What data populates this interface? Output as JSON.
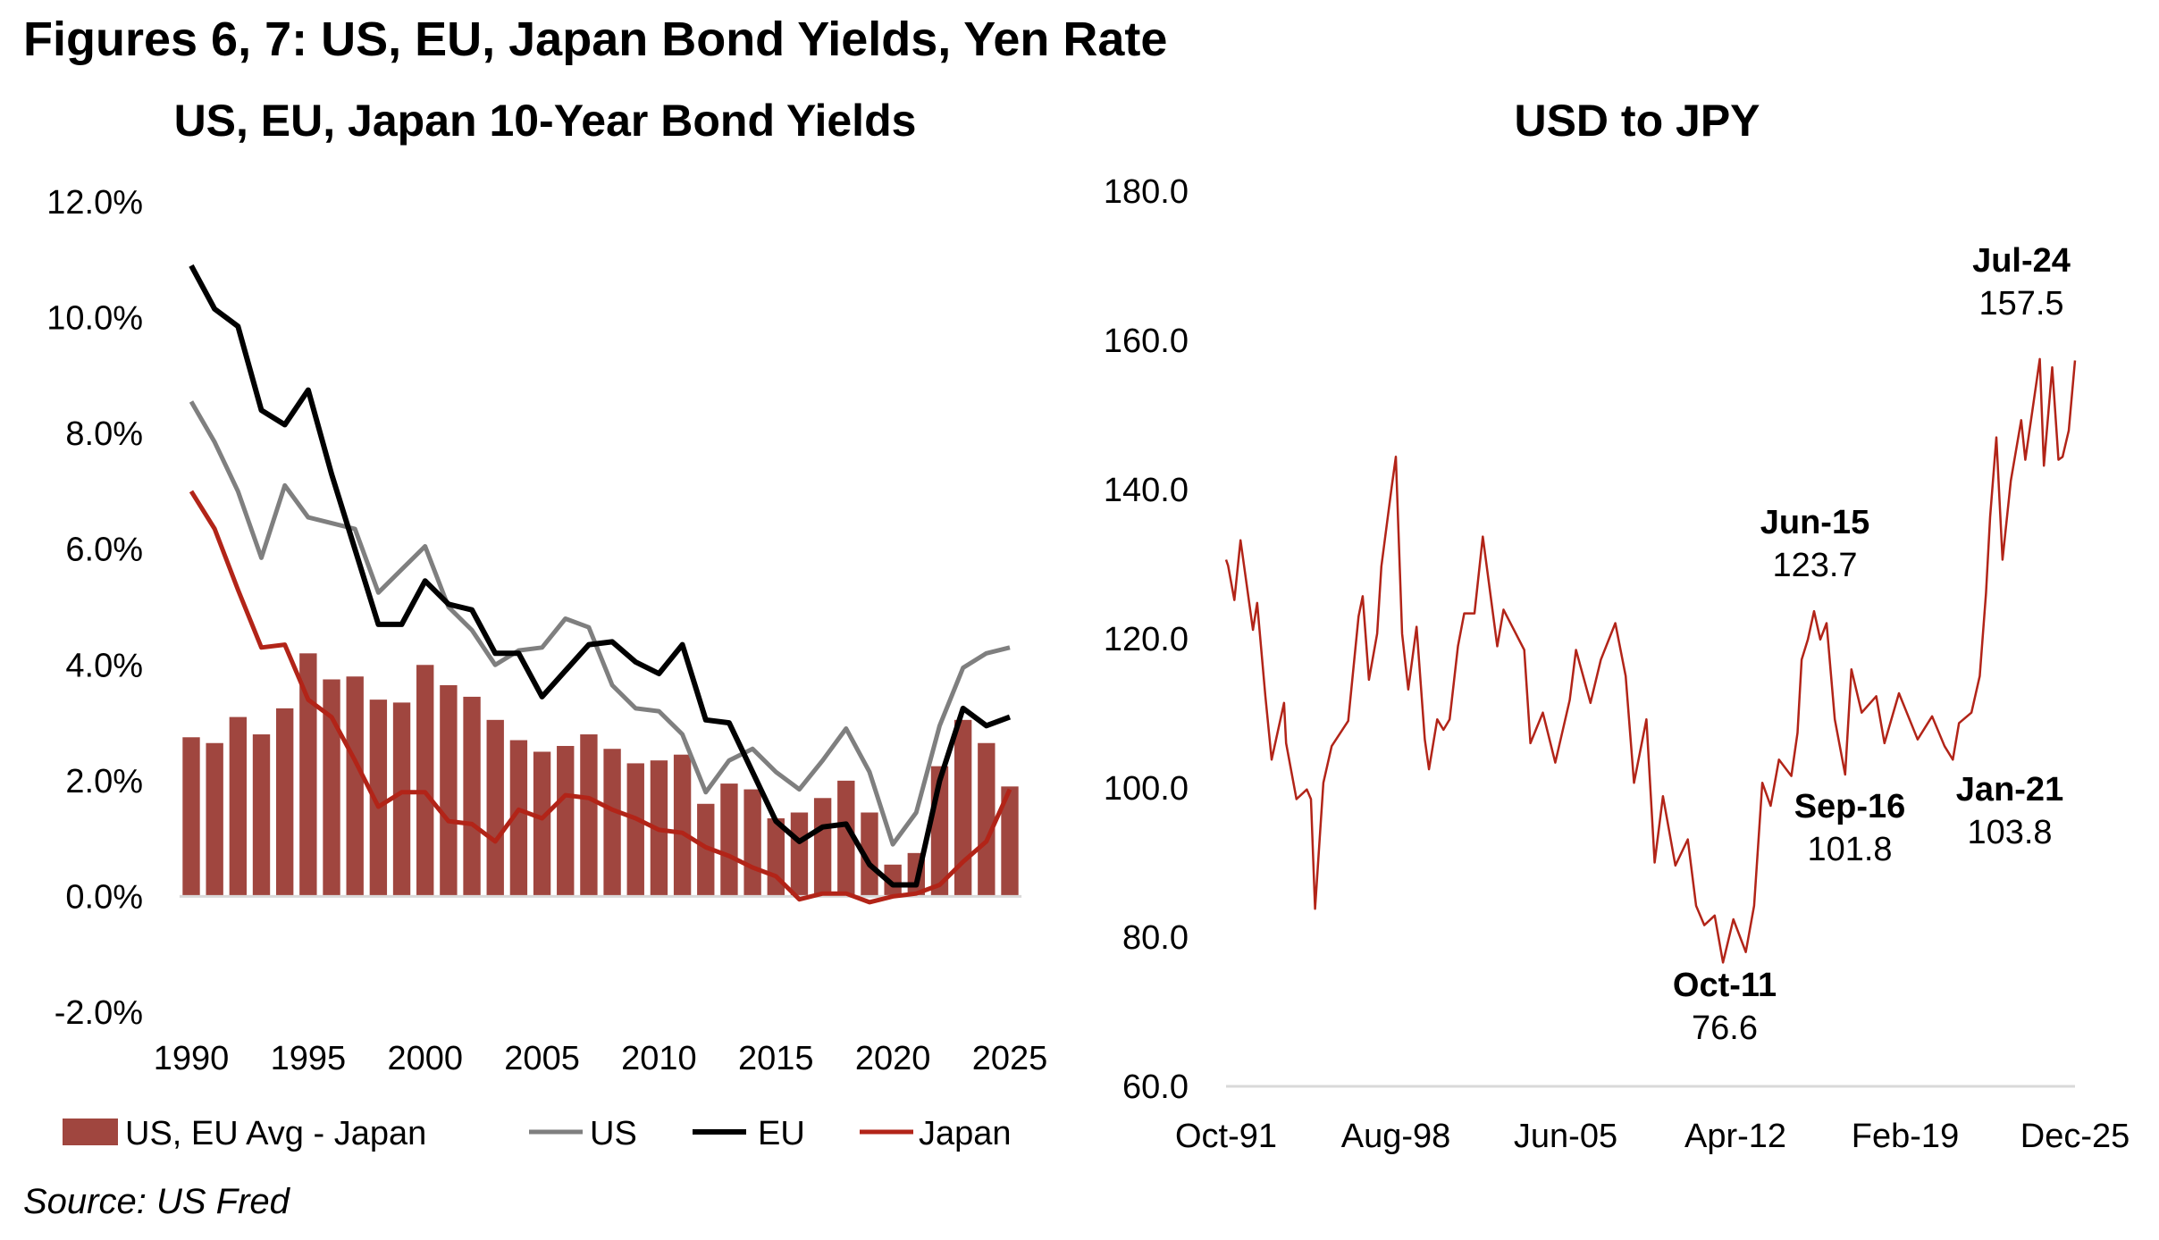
{
  "figure_title": "Figures 6, 7: US, EU, Japan Bond Yields, Yen Rate",
  "source": "Source: US Fred",
  "chart_data": [
    {
      "type": "bar+line",
      "title": "US, EU, Japan 10-Year Bond Yields",
      "xlabel": "",
      "ylabel": "",
      "ylim": [
        -2.0,
        12.0
      ],
      "yticks": [
        "-2.0%",
        "0.0%",
        "2.0%",
        "4.0%",
        "6.0%",
        "8.0%",
        "10.0%",
        "12.0%"
      ],
      "xticks": [
        "1990",
        "1995",
        "2000",
        "2005",
        "2010",
        "2015",
        "2020",
        "2025"
      ],
      "grid": false,
      "legend_position": "bottom",
      "x": [
        1990,
        1991,
        1992,
        1993,
        1994,
        1995,
        1996,
        1997,
        1998,
        1999,
        2000,
        2001,
        2002,
        2003,
        2004,
        2005,
        2006,
        2007,
        2008,
        2009,
        2010,
        2011,
        2012,
        2013,
        2014,
        2015,
        2016,
        2017,
        2018,
        2019,
        2020,
        2021,
        2022,
        2023,
        2024,
        2025
      ],
      "series": [
        {
          "name": "US, EU Avg - Japan",
          "kind": "bar",
          "color": "#A0463F",
          "values": [
            2.75,
            2.65,
            3.1,
            2.8,
            3.25,
            4.2,
            3.75,
            3.8,
            3.4,
            3.35,
            4.0,
            3.65,
            3.45,
            3.05,
            2.7,
            2.5,
            2.6,
            2.8,
            2.55,
            2.3,
            2.35,
            2.45,
            1.6,
            1.95,
            1.85,
            1.35,
            1.45,
            1.7,
            2.0,
            1.45,
            0.55,
            0.75,
            2.25,
            3.05,
            2.65,
            1.9
          ]
        },
        {
          "name": "US",
          "kind": "line",
          "color": "#7F7F7F",
          "values": [
            8.55,
            7.85,
            7.0,
            5.85,
            7.1,
            6.55,
            6.45,
            6.35,
            5.25,
            5.65,
            6.05,
            5.0,
            4.6,
            4.0,
            4.25,
            4.3,
            4.8,
            4.65,
            3.65,
            3.25,
            3.2,
            2.8,
            1.8,
            2.35,
            2.55,
            2.15,
            1.85,
            2.35,
            2.9,
            2.15,
            0.9,
            1.45,
            2.95,
            3.95,
            4.2,
            4.3
          ]
        },
        {
          "name": "EU",
          "kind": "line",
          "color": "#000000",
          "values": [
            10.9,
            10.15,
            9.85,
            8.4,
            8.15,
            8.75,
            7.3,
            6.0,
            4.7,
            4.7,
            5.45,
            5.05,
            4.95,
            4.2,
            4.2,
            3.45,
            3.9,
            4.35,
            4.4,
            4.05,
            3.85,
            4.35,
            3.05,
            3.0,
            2.15,
            1.3,
            0.95,
            1.2,
            1.25,
            0.55,
            0.2,
            0.2,
            2.0,
            3.25,
            2.95,
            3.1
          ]
        },
        {
          "name": "Japan",
          "kind": "line",
          "color": "#B22418",
          "values": [
            7.0,
            6.35,
            5.3,
            4.3,
            4.35,
            3.4,
            3.1,
            2.35,
            1.55,
            1.8,
            1.8,
            1.3,
            1.25,
            0.95,
            1.5,
            1.35,
            1.75,
            1.7,
            1.5,
            1.35,
            1.15,
            1.1,
            0.85,
            0.7,
            0.5,
            0.35,
            -0.05,
            0.05,
            0.05,
            -0.1,
            0.0,
            0.05,
            0.2,
            0.6,
            0.95,
            1.85
          ]
        }
      ]
    },
    {
      "type": "line",
      "title": "USD to JPY",
      "xlabel": "",
      "ylabel": "",
      "ylim": [
        60.0,
        180.0
      ],
      "xlim": [
        "1991-10",
        "2025-12"
      ],
      "yticks": [
        "60.0",
        "80.0",
        "100.0",
        "120.0",
        "140.0",
        "160.0",
        "180.0"
      ],
      "xticks": [
        {
          "label": "Oct-91",
          "date": "1991-10"
        },
        {
          "label": "Aug-98",
          "date": "1998-08"
        },
        {
          "label": "Jun-05",
          "date": "2005-06"
        },
        {
          "label": "Apr-12",
          "date": "2012-04"
        },
        {
          "label": "Feb-19",
          "date": "2019-02"
        },
        {
          "label": "Dec-25",
          "date": "2025-12"
        }
      ],
      "grid": false,
      "color": "#B22418",
      "points": [
        [
          "1991-10",
          130.6
        ],
        [
          "1991-11",
          129.8
        ],
        [
          "1992-02",
          125.2
        ],
        [
          "1992-05",
          133.2
        ],
        [
          "1992-11",
          121.2
        ],
        [
          "1993-01",
          124.8
        ],
        [
          "1993-05",
          112.3
        ],
        [
          "1993-08",
          103.8
        ],
        [
          "1994-02",
          111.4
        ],
        [
          "1994-03",
          106.0
        ],
        [
          "1994-08",
          98.5
        ],
        [
          "1995-01",
          99.8
        ],
        [
          "1995-03",
          98.5
        ],
        [
          "1995-05",
          83.8
        ],
        [
          "1995-09",
          100.7
        ],
        [
          "1996-01",
          105.6
        ],
        [
          "1996-09",
          109.0
        ],
        [
          "1997-02",
          123.0
        ],
        [
          "1997-04",
          125.7
        ],
        [
          "1997-07",
          114.5
        ],
        [
          "1997-11",
          120.7
        ],
        [
          "1998-01",
          129.7
        ],
        [
          "1998-06",
          140.4
        ],
        [
          "1998-08",
          144.4
        ],
        [
          "1998-11",
          120.7
        ],
        [
          "1999-02",
          113.2
        ],
        [
          "1999-06",
          121.6
        ],
        [
          "1999-10",
          106.5
        ],
        [
          "1999-12",
          102.5
        ],
        [
          "2000-04",
          109.2
        ],
        [
          "2000-07",
          107.8
        ],
        [
          "2000-10",
          109.2
        ],
        [
          "2001-02",
          119.0
        ],
        [
          "2001-05",
          123.4
        ],
        [
          "2001-10",
          123.4
        ],
        [
          "2002-02",
          133.7
        ],
        [
          "2002-09",
          119.0
        ],
        [
          "2002-12",
          123.9
        ],
        [
          "2003-10",
          118.5
        ],
        [
          "2004-01",
          106.0
        ],
        [
          "2004-07",
          110.1
        ],
        [
          "2005-01",
          103.4
        ],
        [
          "2005-08",
          111.8
        ],
        [
          "2005-11",
          118.5
        ],
        [
          "2006-06",
          111.4
        ],
        [
          "2006-11",
          117.2
        ],
        [
          "2007-06",
          122.1
        ],
        [
          "2007-11",
          115.0
        ],
        [
          "2008-03",
          100.7
        ],
        [
          "2008-09",
          109.2
        ],
        [
          "2009-01",
          90.0
        ],
        [
          "2009-05",
          98.9
        ],
        [
          "2009-11",
          89.6
        ],
        [
          "2010-05",
          93.1
        ],
        [
          "2010-09",
          84.2
        ],
        [
          "2011-01",
          81.6
        ],
        [
          "2011-06",
          82.9
        ],
        [
          "2011-10",
          76.6
        ],
        [
          "2012-03",
          82.4
        ],
        [
          "2012-09",
          78.0
        ],
        [
          "2013-01",
          84.2
        ],
        [
          "2013-05",
          100.7
        ],
        [
          "2013-09",
          97.6
        ],
        [
          "2014-01",
          103.8
        ],
        [
          "2014-07",
          101.6
        ],
        [
          "2014-10",
          107.4
        ],
        [
          "2014-12",
          117.2
        ],
        [
          "2015-03",
          119.9
        ],
        [
          "2015-06",
          123.7
        ],
        [
          "2015-09",
          119.9
        ],
        [
          "2015-12",
          122.1
        ],
        [
          "2016-04",
          109.2
        ],
        [
          "2016-09",
          101.8
        ],
        [
          "2016-12",
          115.9
        ],
        [
          "2017-05",
          110.1
        ],
        [
          "2017-12",
          112.3
        ],
        [
          "2018-04",
          106.0
        ],
        [
          "2018-11",
          112.7
        ],
        [
          "2019-08",
          106.5
        ],
        [
          "2020-03",
          109.6
        ],
        [
          "2020-09",
          105.6
        ],
        [
          "2021-01",
          103.8
        ],
        [
          "2021-04",
          108.7
        ],
        [
          "2021-10",
          110.1
        ],
        [
          "2022-02",
          115.0
        ],
        [
          "2022-05",
          126.1
        ],
        [
          "2022-07",
          136.3
        ],
        [
          "2022-10",
          147.0
        ],
        [
          "2023-01",
          130.6
        ],
        [
          "2023-05",
          141.2
        ],
        [
          "2023-10",
          149.3
        ],
        [
          "2023-12",
          144.0
        ],
        [
          "2024-07",
          157.5
        ],
        [
          "2024-09",
          143.2
        ],
        [
          "2025-01",
          156.4
        ],
        [
          "2025-04",
          144.0
        ],
        [
          "2025-06",
          144.4
        ],
        [
          "2025-09",
          147.9
        ],
        [
          "2025-12",
          157.3
        ]
      ],
      "annotations": [
        {
          "label": "Jul-24",
          "value": "157.5"
        },
        {
          "label": "Jun-15",
          "value": "123.7"
        },
        {
          "label": "Sep-16",
          "value": "101.8"
        },
        {
          "label": "Jan-21",
          "value": "103.8"
        },
        {
          "label": "Oct-11",
          "value": "76.6"
        }
      ]
    }
  ]
}
